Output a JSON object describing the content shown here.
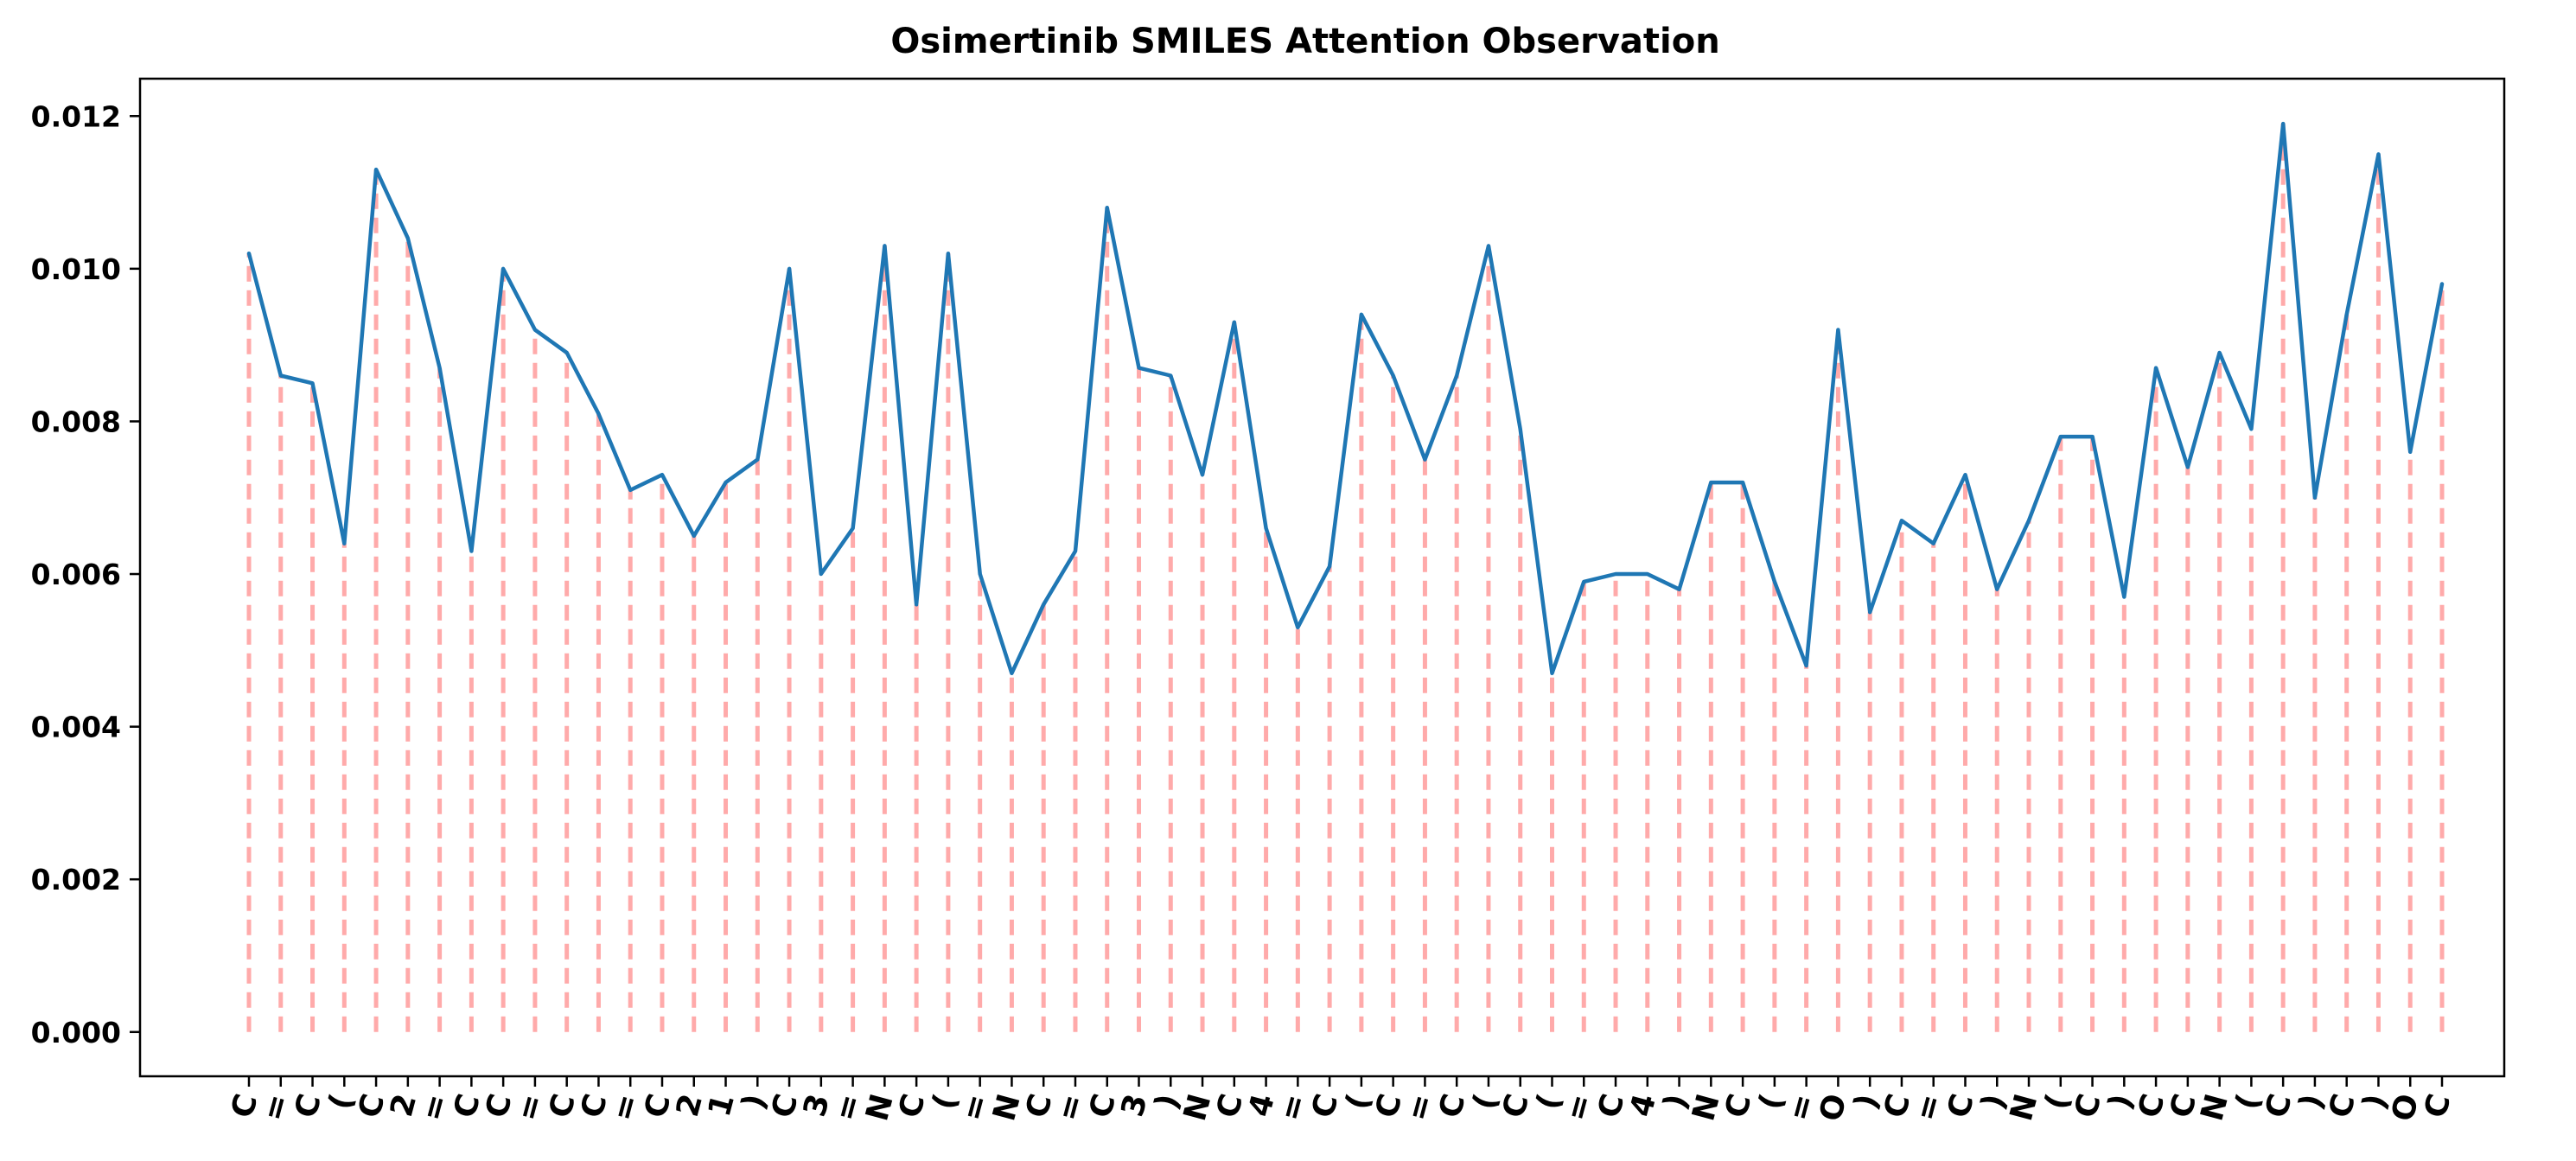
{
  "chart_data": {
    "type": "line",
    "title": "Osimertinib SMILES Attention Observation",
    "xlabel": "",
    "ylabel": "",
    "ylim": [
      -0.00058,
      0.01249
    ],
    "yticks": [
      0.0,
      0.002,
      0.004,
      0.006,
      0.008,
      0.01,
      0.012
    ],
    "ytick_labels": [
      "0.000",
      "0.002",
      "0.004",
      "0.006",
      "0.008",
      "0.010",
      "0.012"
    ],
    "grid": false,
    "stems": {
      "style": "dashed",
      "color": "#ffaaaa"
    },
    "line_color": "#1f77b4",
    "categories": [
      "C",
      "=",
      "C",
      "(",
      "C",
      "2",
      "=",
      "C",
      "C",
      "=",
      "C",
      "C",
      "=",
      "C",
      "2",
      "1",
      ")",
      "C",
      "3",
      "=",
      "N",
      "C",
      "(",
      "=",
      "N",
      "C",
      "=",
      "C",
      "3",
      ")",
      "N",
      "C",
      "4",
      "=",
      "C",
      "(",
      "C",
      "=",
      "C",
      "(",
      "C",
      "(",
      "=",
      "C",
      "4",
      ")",
      "N",
      "C",
      "(",
      "=",
      "O",
      ")",
      "C",
      "=",
      "C",
      ")",
      "N",
      "(",
      "C",
      ")",
      "C",
      "C",
      "N",
      "(",
      "C",
      ")",
      "C",
      ")",
      "O",
      "C"
    ],
    "values": [
      0.0102,
      0.0086,
      0.0085,
      0.0064,
      0.0113,
      0.0104,
      0.0087,
      0.0063,
      0.01,
      0.0092,
      0.0089,
      0.0081,
      0.0071,
      0.0073,
      0.0065,
      0.0072,
      0.0075,
      0.01,
      0.006,
      0.0066,
      0.0103,
      0.0056,
      0.0102,
      0.006,
      0.0047,
      0.0056,
      0.0063,
      0.0108,
      0.0087,
      0.0086,
      0.0073,
      0.0093,
      0.0066,
      0.0053,
      0.0061,
      0.0094,
      0.0086,
      0.0075,
      0.0086,
      0.0103,
      0.0079,
      0.0047,
      0.0059,
      0.006,
      0.006,
      0.0058,
      0.0072,
      0.0072,
      0.0059,
      0.0048,
      0.0092,
      0.0055,
      0.0067,
      0.0064,
      0.0073,
      0.0058,
      0.0067,
      0.0078,
      0.0078,
      0.0057,
      0.0087,
      0.0074,
      0.0089,
      0.0079,
      0.0119,
      0.007,
      0.0094,
      0.0115,
      0.0076,
      0.0098
    ]
  }
}
